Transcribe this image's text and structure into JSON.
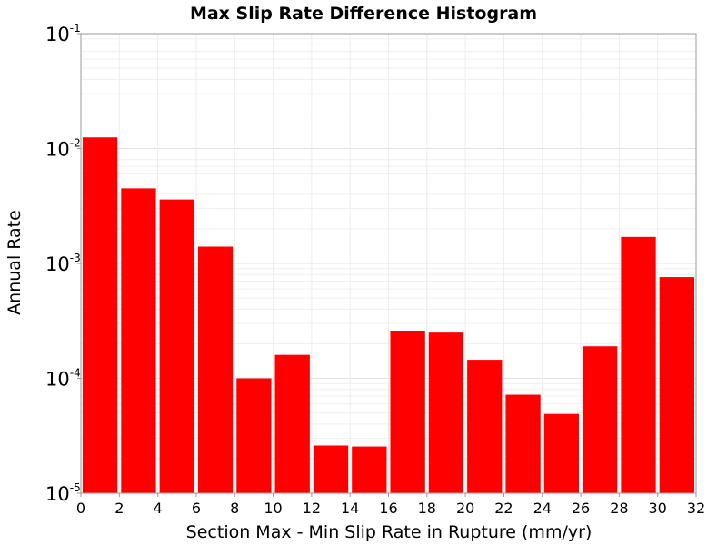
{
  "chart_data": {
    "type": "bar",
    "title": "Max Slip Rate Difference Histogram",
    "xlabel": "Section Max - Min Slip Rate in Rupture (mm/yr)",
    "ylabel": "Annual Rate",
    "y_scale": "log",
    "xlim": [
      0,
      32
    ],
    "ylim": [
      1e-05,
      0.1
    ],
    "x_ticks": [
      "0",
      "2",
      "4",
      "6",
      "8",
      "10",
      "12",
      "14",
      "16",
      "18",
      "20",
      "22",
      "24",
      "26",
      "28",
      "30",
      "32"
    ],
    "y_ticks": [
      {
        "base": "10",
        "exp": "-1",
        "value": 0.1
      },
      {
        "base": "10",
        "exp": "-2",
        "value": 0.01
      },
      {
        "base": "10",
        "exp": "-3",
        "value": 0.001
      },
      {
        "base": "10",
        "exp": "-4",
        "value": 0.0001
      },
      {
        "base": "10",
        "exp": "-5",
        "value": 1e-05
      }
    ],
    "bin_width": 2,
    "x": [
      1,
      3,
      5,
      7,
      9,
      11,
      13,
      15,
      17,
      19,
      21,
      23,
      25,
      27,
      29,
      31
    ],
    "values": [
      0.0125,
      0.0045,
      0.0036,
      0.0014,
      0.0001,
      0.00016,
      2.6e-05,
      2.55e-05,
      0.00026,
      0.00025,
      0.000145,
      7.2e-05,
      4.9e-05,
      0.00019,
      0.0017,
      0.00076
    ],
    "bar_color": "#ff0000",
    "grid": true
  }
}
